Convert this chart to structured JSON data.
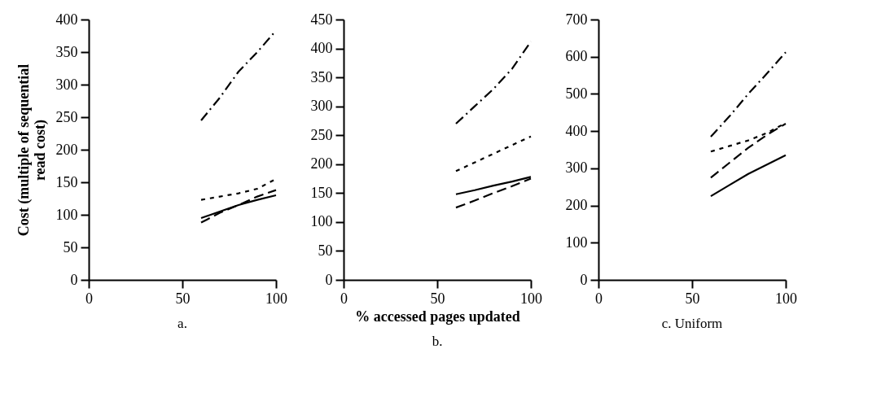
{
  "chart_data": [
    {
      "type": "line",
      "title": "a.",
      "ylabel": "Cost (multiple of sequential read cost)",
      "x": [
        60,
        70,
        80,
        90,
        100
      ],
      "xlim": [
        0,
        100
      ],
      "xticks": [
        0,
        50,
        100
      ],
      "ylim": [
        0,
        400
      ],
      "yticks": [
        0,
        50,
        100,
        150,
        200,
        250,
        300,
        350,
        400
      ],
      "grid": false,
      "marker": "none",
      "series": [
        {
          "color": "#000000",
          "line_style": "solid",
          "values": [
            95,
            105,
            115,
            123,
            130
          ]
        },
        {
          "color": "#000000",
          "line_style": "dashed",
          "values": [
            88,
            103,
            115,
            128,
            138
          ]
        },
        {
          "color": "#000000",
          "line_style": "dotted",
          "values": [
            123,
            128,
            133,
            140,
            155
          ]
        },
        {
          "color": "#000000",
          "line_style": "dashdot",
          "values": [
            245,
            280,
            320,
            350,
            383
          ]
        }
      ]
    },
    {
      "type": "line",
      "title": "b.",
      "xlabel": "% accessed pages updated",
      "x": [
        60,
        70,
        80,
        90,
        100
      ],
      "xlim": [
        0,
        100
      ],
      "xticks": [
        0,
        50,
        100
      ],
      "ylim": [
        0,
        450
      ],
      "yticks": [
        0,
        50,
        100,
        150,
        200,
        250,
        300,
        350,
        400,
        450
      ],
      "grid": false,
      "marker": "none",
      "series": [
        {
          "color": "#000000",
          "line_style": "solid",
          "values": [
            148,
            155,
            163,
            170,
            178
          ]
        },
        {
          "color": "#000000",
          "line_style": "dashed",
          "values": [
            125,
            137,
            150,
            162,
            175
          ]
        },
        {
          "color": "#000000",
          "line_style": "dotted",
          "values": [
            188,
            203,
            218,
            233,
            248
          ]
        },
        {
          "color": "#000000",
          "line_style": "dashdot",
          "values": [
            270,
            300,
            330,
            365,
            412
          ]
        }
      ]
    },
    {
      "type": "line",
      "title": "c. Uniform",
      "x": [
        60,
        70,
        80,
        90,
        100
      ],
      "xlim": [
        0,
        100
      ],
      "xticks": [
        0,
        50,
        100
      ],
      "ylim": [
        0,
        700
      ],
      "yticks": [
        0,
        100,
        200,
        300,
        400,
        500,
        600,
        700
      ],
      "grid": false,
      "marker": "none",
      "series": [
        {
          "color": "#000000",
          "line_style": "solid",
          "values": [
            225,
            255,
            285,
            310,
            335
          ]
        },
        {
          "color": "#000000",
          "line_style": "dashed",
          "values": [
            275,
            315,
            355,
            390,
            420
          ]
        },
        {
          "color": "#000000",
          "line_style": "dotted",
          "values": [
            345,
            360,
            375,
            395,
            422
          ]
        },
        {
          "color": "#000000",
          "line_style": "dashdot",
          "values": [
            385,
            440,
            500,
            555,
            612
          ]
        }
      ]
    }
  ]
}
